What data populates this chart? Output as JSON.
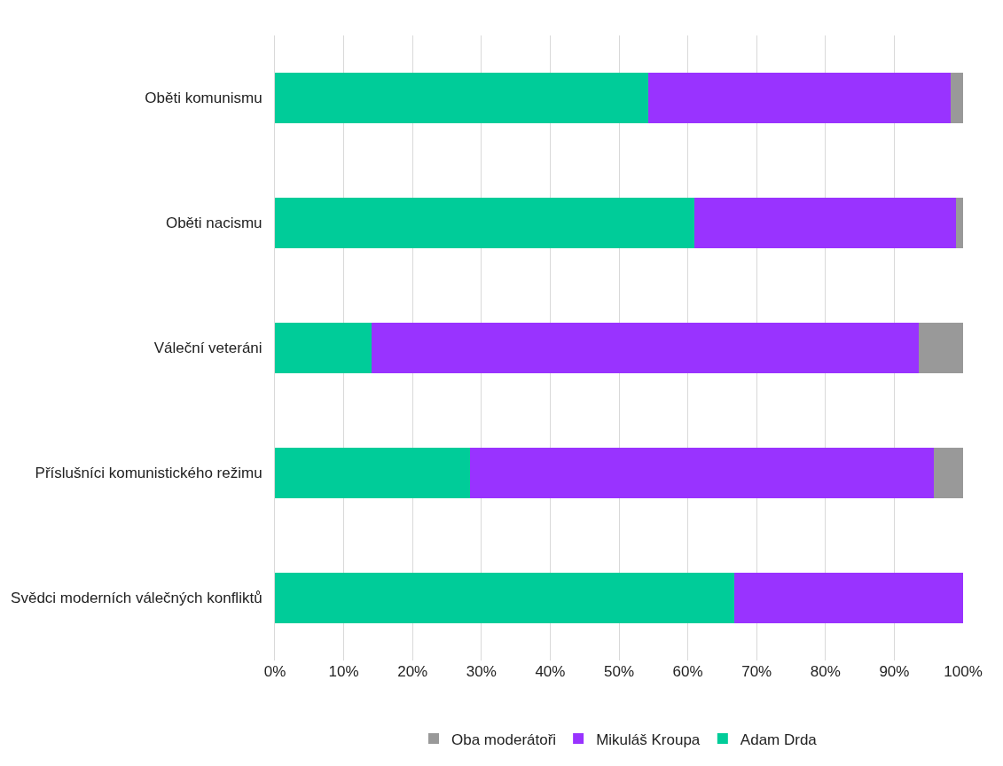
{
  "chart_data": {
    "type": "bar",
    "orientation": "horizontal",
    "stacked": true,
    "categories": [
      "Oběti komunismu",
      "Oběti nacismu",
      "Váleční veteráni",
      "Příslušníci komunistického režimu",
      "Svědci moderních válečných konfliktů"
    ],
    "series": [
      {
        "name": "Adam Drda",
        "color": "#00cc99",
        "values": [
          54.3,
          60.9,
          14.0,
          28.3,
          66.7
        ]
      },
      {
        "name": "Mikuláš Kroupa",
        "color": "#9933ff",
        "values": [
          43.9,
          38.1,
          79.6,
          67.4,
          33.3
        ]
      },
      {
        "name": "Oba moderátoři",
        "color": "#999999",
        "values": [
          1.8,
          1.0,
          6.4,
          4.3,
          0
        ]
      }
    ],
    "xlim": [
      0,
      100
    ],
    "xticks": [
      {
        "value": 0,
        "label": "0%"
      },
      {
        "value": 10,
        "label": "10%"
      },
      {
        "value": 20,
        "label": "20%"
      },
      {
        "value": 30,
        "label": "30%"
      },
      {
        "value": 40,
        "label": "40%"
      },
      {
        "value": 50,
        "label": "50%"
      },
      {
        "value": 60,
        "label": "60%"
      },
      {
        "value": 70,
        "label": "70%"
      },
      {
        "value": 80,
        "label": "80%"
      },
      {
        "value": 90,
        "label": "90%"
      },
      {
        "value": 100,
        "label": "100%"
      }
    ],
    "grid": "x",
    "legend": "bottom"
  }
}
